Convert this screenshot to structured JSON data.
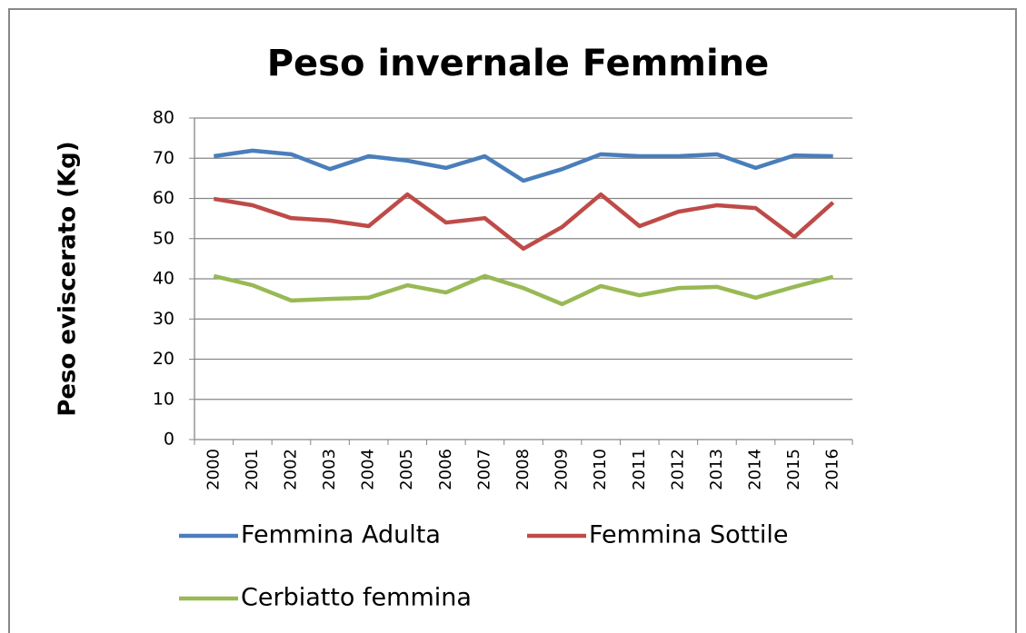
{
  "chart_data": {
    "type": "line",
    "title": "Peso invernale Femmine",
    "y_label": "Peso eviscerato (Kg)",
    "categories": [
      "2000",
      "2001",
      "2002",
      "2003",
      "2004",
      "2005",
      "2006",
      "2007",
      "2008",
      "2009",
      "2010",
      "2011",
      "2012",
      "2013",
      "2014",
      "2015",
      "2016"
    ],
    "series": [
      {
        "name": "Femmina Adulta",
        "color": "#4a7ebb",
        "values": [
          70.5,
          71.9,
          71,
          67.3,
          70.5,
          69.4,
          67.6,
          70.5,
          64.4,
          67.3,
          71,
          70.5,
          70.5,
          71,
          67.6,
          70.7,
          70.5
        ]
      },
      {
        "name": "Femmina Sottile",
        "color": "#be4b48",
        "values": [
          59.9,
          58.3,
          55.1,
          54.5,
          53.1,
          61,
          54,
          55.1,
          47.5,
          52.9,
          61,
          53.1,
          56.7,
          58.3,
          57.6,
          50.4,
          59
        ]
      },
      {
        "name": "Cerbiatto femmina",
        "color": "#98b954",
        "values": [
          40.7,
          38.4,
          34.6,
          35,
          35.3,
          38.4,
          36.6,
          40.7,
          37.7,
          33.7,
          38.2,
          35.9,
          37.7,
          38,
          35.3,
          38,
          40.5
        ]
      }
    ],
    "ylim": [
      0,
      80
    ],
    "yticks": [
      0,
      10,
      20,
      30,
      40,
      50,
      60,
      70,
      80
    ],
    "grid": true,
    "legend": "bottom"
  }
}
